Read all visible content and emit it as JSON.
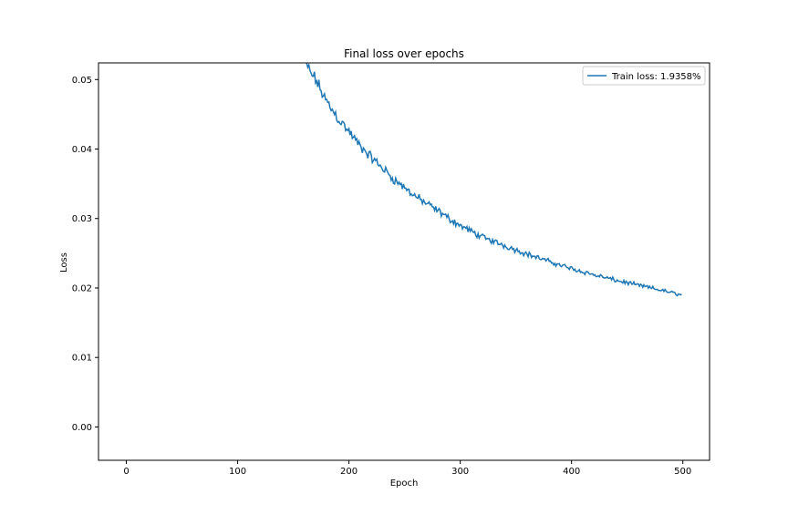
{
  "chart_data": {
    "type": "line",
    "title": "Final loss over epochs",
    "xlabel": "Epoch",
    "ylabel": "Loss",
    "xlim": [
      -25,
      524
    ],
    "ylim": [
      -0.0048,
      0.0524
    ],
    "xticks": [
      0,
      100,
      200,
      300,
      400,
      500
    ],
    "yticks": [
      0.0,
      0.01,
      0.02,
      0.03,
      0.04,
      0.05
    ],
    "ytick_labels": [
      "0.00",
      "0.01",
      "0.02",
      "0.03",
      "0.04",
      "0.05"
    ],
    "grid": false,
    "legend": {
      "location": "upper right"
    },
    "series": [
      {
        "name": "Train loss: 1.9358%",
        "color": "#1f77b4",
        "x": [
          160,
          170,
          180,
          190,
          200,
          210,
          220,
          230,
          240,
          250,
          260,
          270,
          280,
          290,
          300,
          320,
          340,
          360,
          380,
          400,
          420,
          440,
          460,
          480,
          499
        ],
        "y": [
          0.0524,
          0.05,
          0.0468,
          0.0445,
          0.0425,
          0.0404,
          0.0388,
          0.0373,
          0.0357,
          0.0344,
          0.0332,
          0.0321,
          0.0311,
          0.03,
          0.029,
          0.0273,
          0.0261,
          0.0249,
          0.0238,
          0.0228,
          0.0219,
          0.0211,
          0.0204,
          0.0197,
          0.019
        ]
      }
    ]
  }
}
